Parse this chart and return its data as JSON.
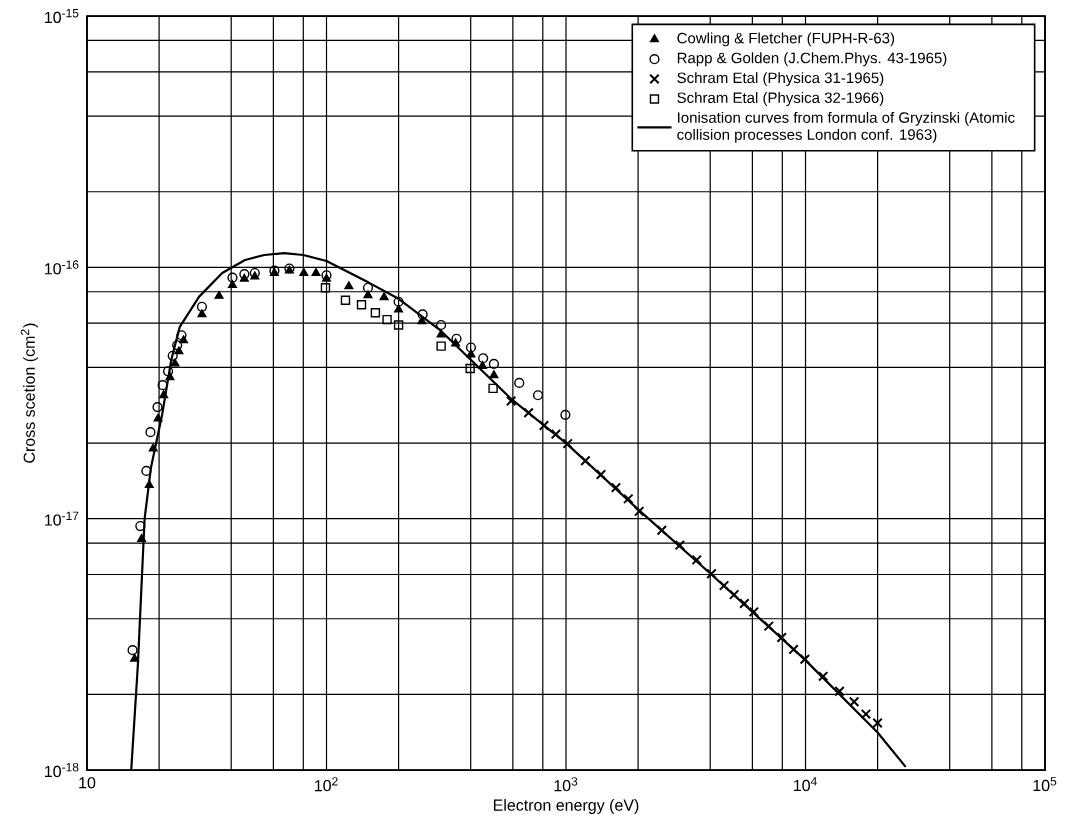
{
  "chart_data": {
    "type": "scatter",
    "xlabel": "Electron energy (eV)",
    "ylabel": "Cross scetion (cm$^{2}$)",
    "log": "xy",
    "grid": true,
    "legend": "top right",
    "xlim": [
      10,
      100000
    ],
    "ylim": [
      1e-18,
      1e-15
    ],
    "xticks": [
      {
        "value": 10,
        "label": "10"
      },
      {
        "value": 100,
        "label": "10$^{2}$"
      },
      {
        "value": 1000,
        "label": "10$^{3}$"
      },
      {
        "value": 10000,
        "label": "10$^{4}$"
      },
      {
        "value": 100000,
        "label": "10$^{5}$"
      }
    ],
    "yticks": [
      {
        "value": 1e-18,
        "label": "10$^{-18}$"
      },
      {
        "value": 1e-17,
        "label": "10$^{-17}$"
      },
      {
        "value": 1e-16,
        "label": "10$^{-16}$"
      },
      {
        "value": 1e-15,
        "label": "10$^{-15}$"
      }
    ],
    "series": [
      {
        "name": "Cowling & Fletcher (FUPH-R-63)",
        "type": "scatter",
        "marker": "triangle",
        "color": "#000000",
        "x": [
          15.8,
          16.9,
          18.2,
          18.9,
          19.8,
          20.9,
          22.2,
          23.3,
          24.2,
          25.3,
          30.2,
          35.6,
          40.5,
          45.4,
          50.2,
          60.6,
          70,
          80.4,
          90.4,
          100,
          124,
          149,
          174,
          200,
          250,
          301,
          346,
          401,
          448,
          500
        ],
        "values": [
          2.77e-18,
          8.3e-18,
          1.36e-17,
          1.9e-17,
          2.5e-17,
          3.1e-17,
          3.65e-17,
          4.14e-17,
          4.63e-17,
          5.12e-17,
          6.5e-17,
          7.7e-17,
          8.5e-17,
          9e-17,
          9.2e-17,
          9.5e-17,
          9.7e-17,
          9.5e-17,
          9.5e-17,
          9e-17,
          8.4e-17,
          7.75e-17,
          7.6e-17,
          6.8e-17,
          6.1e-17,
          5.4e-17,
          4.98e-17,
          4.5e-17,
          4.05e-17,
          3.72e-17
        ]
      },
      {
        "name": "Rapp & Golden (J.Chem.Phys. 43-1965)",
        "type": "scatter",
        "marker": "circle",
        "color": "#000000",
        "x": [
          15.5,
          16.7,
          17.7,
          18.4,
          19.7,
          20.7,
          21.8,
          22.8,
          23.8,
          24.8,
          30.2,
          40.5,
          45.4,
          50.2,
          60.6,
          70,
          100,
          149,
          200,
          252,
          301,
          349,
          401,
          451,
          500,
          638,
          764,
          994
        ],
        "values": [
          3e-18,
          9.35e-18,
          1.55e-17,
          2.21e-17,
          2.78e-17,
          3.4e-17,
          3.86e-17,
          4.45e-17,
          4.9e-17,
          5.37e-17,
          6.97e-17,
          9.1e-17,
          9.4e-17,
          9.5e-17,
          9.7e-17,
          9.9e-17,
          9.3e-17,
          8.3e-17,
          7.3e-17,
          6.5e-17,
          5.9e-17,
          5.2e-17,
          4.8e-17,
          4.35e-17,
          4.13e-17,
          3.47e-17,
          3.1e-17,
          2.59e-17
        ]
      },
      {
        "name": "Schram Etal (Physica 31-1965)",
        "type": "scatter",
        "marker": "cross",
        "color": "#000000",
        "x": [
          590,
          698,
          809,
          907,
          1016,
          1205,
          1400,
          1617,
          1820,
          2020,
          2512,
          2987,
          3516,
          4048,
          4570,
          5036,
          5555,
          6086,
          7025,
          7955,
          8918,
          9935,
          11850,
          13870,
          15960,
          17880,
          19990
        ],
        "values": [
          2.94e-17,
          2.64e-17,
          2.35e-17,
          2.17e-17,
          1.99e-17,
          1.7e-17,
          1.5e-17,
          1.33e-17,
          1.2e-17,
          1.07e-17,
          9e-18,
          7.85e-18,
          6.86e-18,
          6.04e-18,
          5.42e-18,
          4.99e-18,
          4.6e-18,
          4.26e-18,
          3.74e-18,
          3.37e-18,
          3.02e-18,
          2.76e-18,
          2.36e-18,
          2.06e-18,
          1.87e-18,
          1.67e-18,
          1.54e-18
        ]
      },
      {
        "name": "Schram Etal (Physica 32-1966)",
        "type": "scatter",
        "marker": "square",
        "color": "#000000",
        "x": [
          99,
          120,
          140,
          160,
          179,
          200,
          301,
          398,
          496
        ],
        "values": [
          8.3e-17,
          7.4e-17,
          7.1e-17,
          6.6e-17,
          6.2e-17,
          5.9e-17,
          4.86e-17,
          3.96e-17,
          3.3e-17
        ]
      },
      {
        "name": "Ionisation curves from formula of Gryzinski (Atomic collision processes London conf. 1963)",
        "type": "line",
        "marker": "none",
        "line_style": "solid",
        "color": "#000000",
        "x": [
          15.3,
          16.3,
          17.4,
          18.5,
          20.6,
          22.5,
          24.4,
          29.4,
          36.7,
          45.7,
          55,
          66.6,
          80,
          100,
          150,
          200,
          300,
          590,
          1000,
          2020,
          4048,
          9935,
          20000,
          26180
        ],
        "values": [
          1e-18,
          2.6e-18,
          1e-17,
          1.6e-17,
          2.6e-17,
          4.3e-17,
          5.8e-17,
          7.65e-17,
          9.5e-17,
          1.07e-16,
          1.12e-16,
          1.14e-16,
          1.12e-16,
          1.06e-16,
          8.7e-17,
          7.5e-17,
          5.6e-17,
          3e-17,
          2e-17,
          1.08e-17,
          6e-18,
          2.75e-18,
          1.41e-18,
          1.03e-18
        ]
      }
    ]
  }
}
